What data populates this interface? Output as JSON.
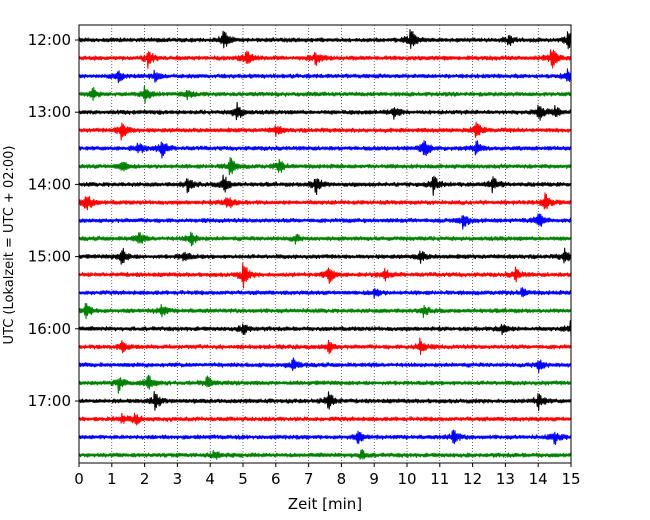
{
  "chart_data": {
    "type": "line",
    "chart_kind": "helicorder",
    "xlabel": "Zeit  [min]",
    "ylabel": "UTC (Lokalzeit = UTC + 02:00)",
    "xlim": [
      0,
      15
    ],
    "x_ticks": [
      "0",
      "1",
      "2",
      "3",
      "4",
      "5",
      "6",
      "7",
      "8",
      "9",
      "10",
      "11",
      "12",
      "13",
      "14",
      "15"
    ],
    "y_tick_labels": [
      "12:00",
      "13:00",
      "14:00",
      "15:00",
      "16:00",
      "17:00"
    ],
    "grid": "vertical-dotted",
    "trace_colors": [
      "#000000",
      "#ff0000",
      "#0000ff",
      "#008000"
    ],
    "row_minutes": 15,
    "start_time": "12:00",
    "rows": [
      {
        "start": "12:00",
        "color": "#000000",
        "events": [
          {
            "t": 4.4,
            "a": 1.0
          },
          {
            "t": 10.1,
            "a": 1.2
          },
          {
            "t": 14.9,
            "a": 0.9
          },
          {
            "t": 13.1,
            "a": 0.6
          }
        ]
      },
      {
        "start": "12:15",
        "color": "#ff0000",
        "events": [
          {
            "t": 2.1,
            "a": 0.8
          },
          {
            "t": 5.1,
            "a": 1.0
          },
          {
            "t": 7.2,
            "a": 0.7
          },
          {
            "t": 14.4,
            "a": 1.1
          }
        ]
      },
      {
        "start": "12:30",
        "color": "#0000ff",
        "events": [
          {
            "t": 1.2,
            "a": 0.6
          },
          {
            "t": 2.3,
            "a": 0.5
          },
          {
            "t": 14.9,
            "a": 0.7
          }
        ]
      },
      {
        "start": "12:45",
        "color": "#008000",
        "events": [
          {
            "t": 0.4,
            "a": 0.6
          },
          {
            "t": 2.0,
            "a": 0.8
          },
          {
            "t": 3.3,
            "a": 0.4
          }
        ]
      },
      {
        "start": "13:00",
        "color": "#000000",
        "events": [
          {
            "t": 4.8,
            "a": 1.0
          },
          {
            "t": 9.6,
            "a": 0.7
          },
          {
            "t": 14.0,
            "a": 0.9
          },
          {
            "t": 14.5,
            "a": 0.6
          }
        ]
      },
      {
        "start": "13:15",
        "color": "#ff0000",
        "events": [
          {
            "t": 1.3,
            "a": 1.2
          },
          {
            "t": 6.0,
            "a": 0.5
          },
          {
            "t": 12.1,
            "a": 0.9
          }
        ]
      },
      {
        "start": "13:30",
        "color": "#0000ff",
        "events": [
          {
            "t": 2.5,
            "a": 1.0
          },
          {
            "t": 1.8,
            "a": 0.6
          },
          {
            "t": 10.5,
            "a": 1.1
          },
          {
            "t": 12.1,
            "a": 0.8
          }
        ]
      },
      {
        "start": "13:45",
        "color": "#008000",
        "events": [
          {
            "t": 1.3,
            "a": 0.6
          },
          {
            "t": 4.6,
            "a": 0.9
          },
          {
            "t": 6.1,
            "a": 0.7
          }
        ]
      },
      {
        "start": "14:00",
        "color": "#000000",
        "events": [
          {
            "t": 3.3,
            "a": 0.8
          },
          {
            "t": 4.4,
            "a": 1.0
          },
          {
            "t": 7.2,
            "a": 1.1
          },
          {
            "t": 10.8,
            "a": 0.9
          },
          {
            "t": 12.6,
            "a": 0.8
          }
        ]
      },
      {
        "start": "14:15",
        "color": "#ff0000",
        "events": [
          {
            "t": 0.2,
            "a": 1.2
          },
          {
            "t": 4.5,
            "a": 0.9
          },
          {
            "t": 14.2,
            "a": 0.8
          }
        ]
      },
      {
        "start": "14:30",
        "color": "#0000ff",
        "events": [
          {
            "t": 11.7,
            "a": 1.0
          },
          {
            "t": 14.0,
            "a": 0.9
          }
        ]
      },
      {
        "start": "14:45",
        "color": "#008000",
        "events": [
          {
            "t": 1.8,
            "a": 0.7
          },
          {
            "t": 3.4,
            "a": 0.8
          },
          {
            "t": 6.6,
            "a": 0.4
          }
        ]
      },
      {
        "start": "15:00",
        "color": "#000000",
        "events": [
          {
            "t": 1.3,
            "a": 0.9
          },
          {
            "t": 3.2,
            "a": 0.6
          },
          {
            "t": 10.4,
            "a": 0.6
          },
          {
            "t": 14.8,
            "a": 0.7
          }
        ]
      },
      {
        "start": "15:15",
        "color": "#ff0000",
        "events": [
          {
            "t": 5.0,
            "a": 1.2
          },
          {
            "t": 7.6,
            "a": 1.0
          },
          {
            "t": 9.3,
            "a": 0.6
          },
          {
            "t": 13.3,
            "a": 0.7
          }
        ]
      },
      {
        "start": "15:30",
        "color": "#0000ff",
        "events": [
          {
            "t": 9.0,
            "a": 0.5
          },
          {
            "t": 13.5,
            "a": 0.5
          }
        ]
      },
      {
        "start": "15:45",
        "color": "#008000",
        "events": [
          {
            "t": 0.2,
            "a": 0.8
          },
          {
            "t": 2.5,
            "a": 0.6
          },
          {
            "t": 10.5,
            "a": 0.5
          }
        ]
      },
      {
        "start": "16:00",
        "color": "#000000",
        "events": [
          {
            "t": 5.0,
            "a": 0.6
          },
          {
            "t": 12.9,
            "a": 0.6
          },
          {
            "t": 15.0,
            "a": 1.0
          }
        ]
      },
      {
        "start": "16:15",
        "color": "#ff0000",
        "events": [
          {
            "t": 1.3,
            "a": 0.5
          },
          {
            "t": 7.6,
            "a": 0.6
          },
          {
            "t": 10.4,
            "a": 0.8
          }
        ]
      },
      {
        "start": "16:30",
        "color": "#0000ff",
        "events": [
          {
            "t": 6.5,
            "a": 0.8
          },
          {
            "t": 14.0,
            "a": 0.7
          }
        ]
      },
      {
        "start": "16:45",
        "color": "#008000",
        "events": [
          {
            "t": 1.2,
            "a": 0.8
          },
          {
            "t": 2.1,
            "a": 0.8
          },
          {
            "t": 3.9,
            "a": 0.7
          }
        ]
      },
      {
        "start": "17:00",
        "color": "#000000",
        "events": [
          {
            "t": 2.3,
            "a": 1.0
          },
          {
            "t": 7.6,
            "a": 1.1
          },
          {
            "t": 14.0,
            "a": 0.9
          }
        ]
      },
      {
        "start": "17:15",
        "color": "#ff0000",
        "events": [
          {
            "t": 1.7,
            "a": 0.6
          },
          {
            "t": 1.3,
            "a": 0.4
          }
        ]
      },
      {
        "start": "17:30",
        "color": "#0000ff",
        "events": [
          {
            "t": 8.5,
            "a": 0.6
          },
          {
            "t": 11.4,
            "a": 0.8
          },
          {
            "t": 14.5,
            "a": 0.7
          }
        ]
      },
      {
        "start": "17:45",
        "color": "#008000",
        "events": [
          {
            "t": 4.1,
            "a": 0.5
          },
          {
            "t": 8.6,
            "a": 0.5
          }
        ]
      }
    ]
  }
}
